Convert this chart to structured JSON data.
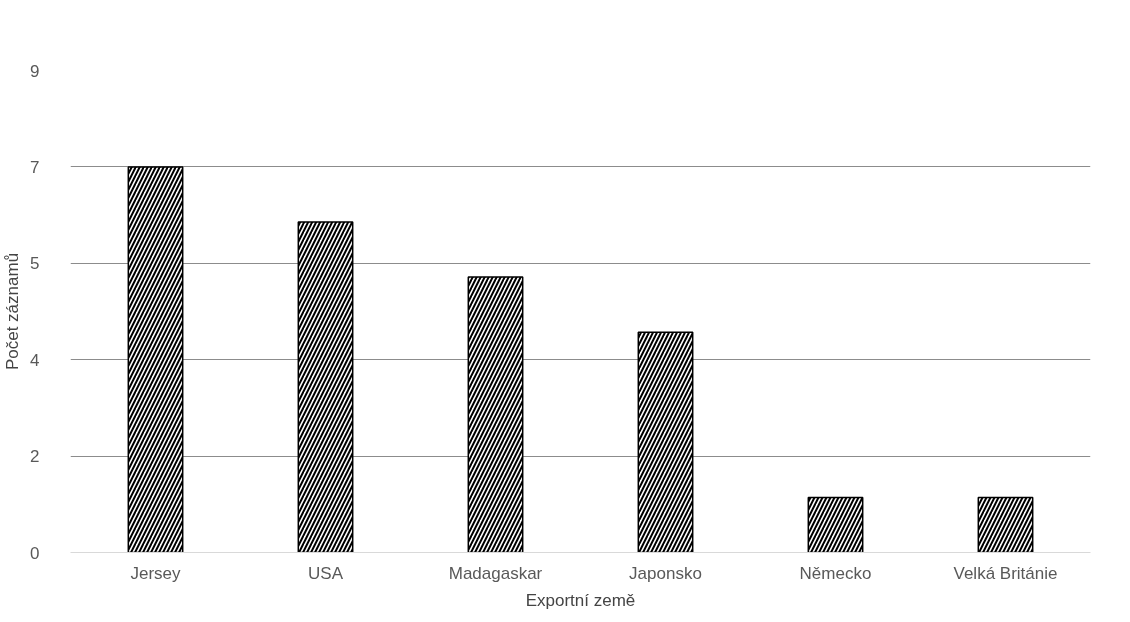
{
  "chart_data": {
    "type": "bar",
    "xlabel": "Exportní země",
    "ylabel": "Počet záznamů",
    "categories": [
      "Jersey",
      "USA",
      "Madagaskar",
      "Japonsko",
      "Německo",
      "Velká Británie"
    ],
    "values": [
      7,
      6,
      5,
      4,
      1,
      1
    ],
    "color": "#000000",
    "ylim": [
      0,
      8.75
    ],
    "yticks": [
      0,
      {
        "value": 1.75,
        "label": "2"
      },
      {
        "value": 3.5,
        "label": "4"
      },
      {
        "value": 5.25,
        "label": "5"
      },
      7,
      {
        "value": 8.75,
        "label": "9"
      }
    ],
    "grid": "y"
  }
}
